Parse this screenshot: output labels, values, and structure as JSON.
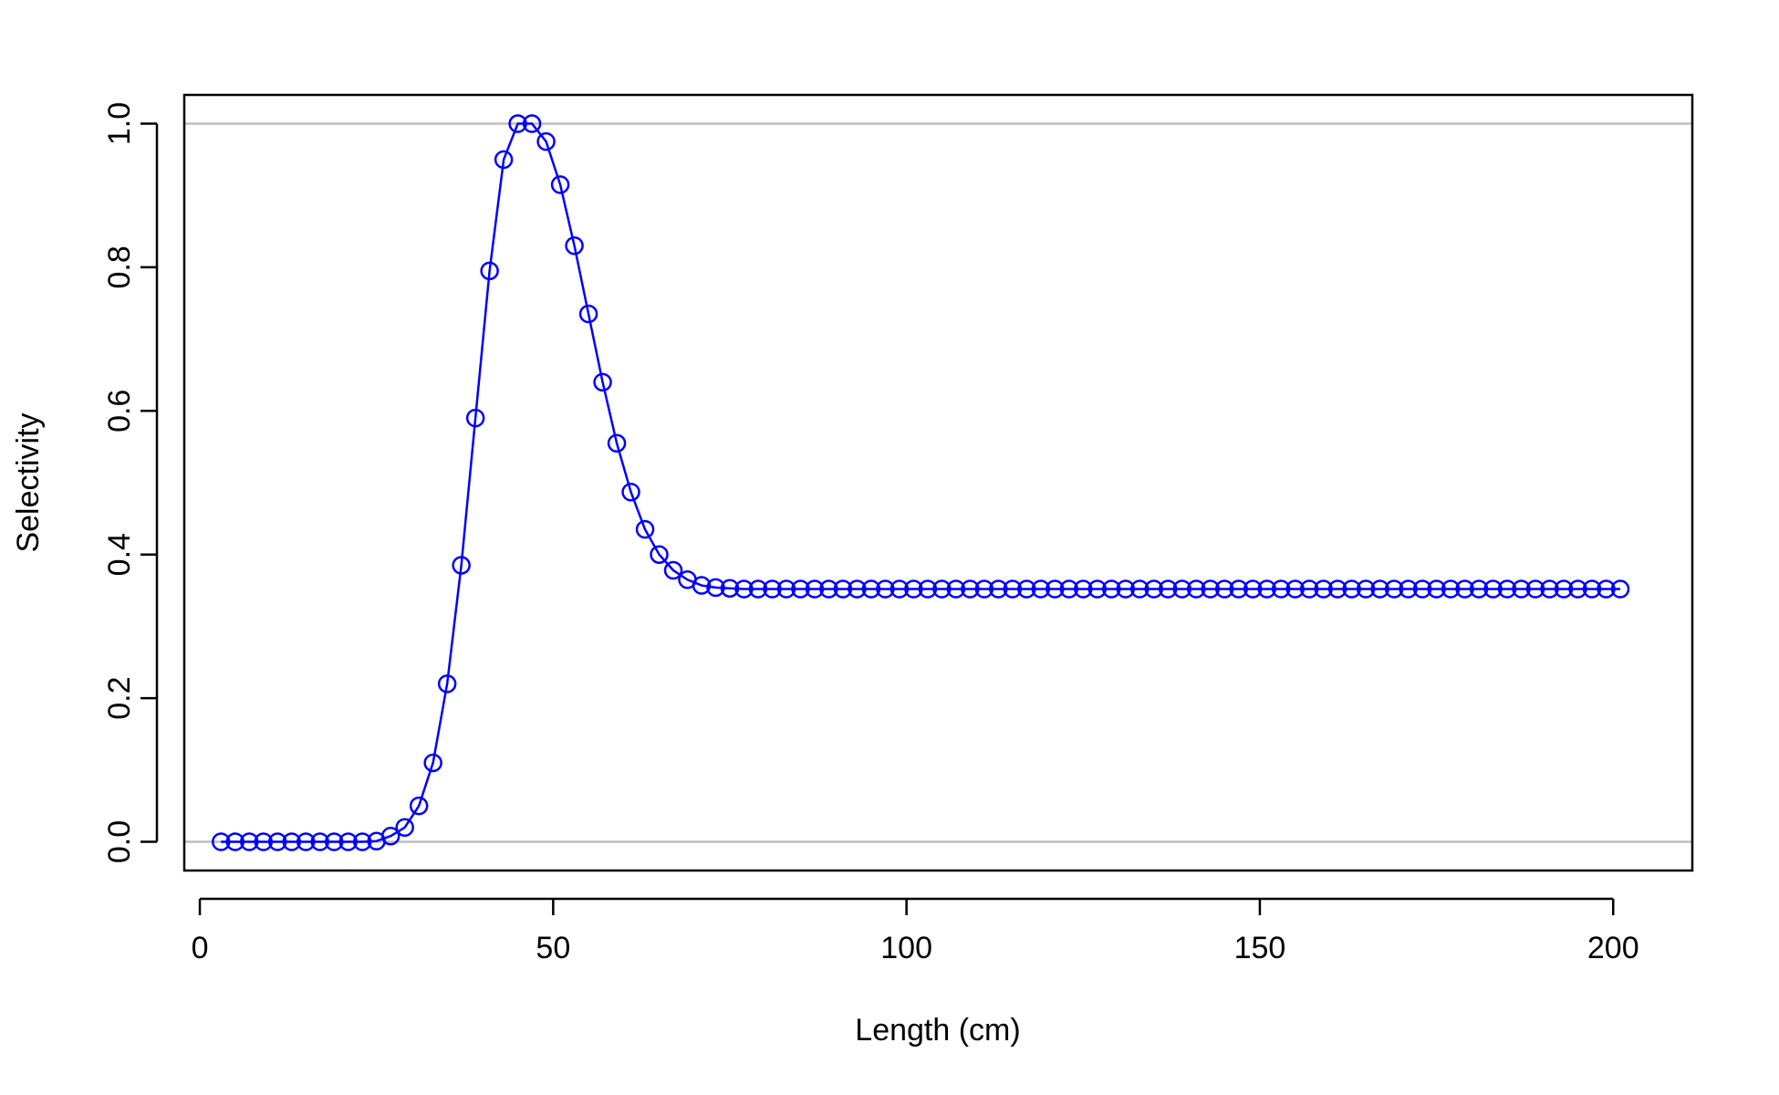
{
  "colors": {
    "series": "#0000ff",
    "reference_line": "#bebebe",
    "axis": "#000000",
    "background": "#ffffff"
  },
  "chart_data": {
    "type": "line",
    "markers": "open-circle",
    "title": "",
    "xlabel": "Length (cm)",
    "ylabel": "Selectivity",
    "xlim": [
      -2.2,
      211.2
    ],
    "ylim": [
      -0.04,
      1.04
    ],
    "x_ticks": [
      0,
      50,
      100,
      150,
      200
    ],
    "x_tick_labels": [
      "0",
      "50",
      "100",
      "150",
      "200"
    ],
    "y_ticks": [
      0.0,
      0.2,
      0.4,
      0.6,
      0.8,
      1.0
    ],
    "y_tick_labels": [
      "0.0",
      "0.2",
      "0.4",
      "0.6",
      "0.8",
      "1.0"
    ],
    "reference_lines_y": [
      0,
      1
    ],
    "grid": false,
    "legend": "none",
    "series": [
      {
        "x": [
          3,
          5,
          7,
          9,
          11,
          13,
          15,
          17,
          19,
          21,
          23,
          25,
          27,
          29,
          31,
          33,
          35,
          37,
          39,
          41,
          43,
          45,
          47,
          49,
          51,
          53,
          55,
          57,
          59,
          61,
          63,
          65,
          67,
          69,
          71,
          73,
          75,
          77,
          79,
          81,
          83,
          85,
          87,
          89,
          91,
          93,
          95,
          97,
          99,
          101,
          103,
          105,
          107,
          109,
          111,
          113,
          115,
          117,
          119,
          121,
          123,
          125,
          127,
          129,
          131,
          133,
          135,
          137,
          139,
          141,
          143,
          145,
          147,
          149,
          151,
          153,
          155,
          157,
          159,
          161,
          163,
          165,
          167,
          169,
          171,
          173,
          175,
          177,
          179,
          181,
          183,
          185,
          187,
          189,
          191,
          193,
          195,
          197,
          199,
          201
        ],
        "y": [
          0,
          0,
          0,
          0,
          0,
          0,
          0,
          0,
          0,
          0,
          0,
          0.001,
          0.008,
          0.02,
          0.05,
          0.11,
          0.22,
          0.385,
          0.59,
          0.795,
          0.95,
          1.0,
          1.0,
          0.975,
          0.915,
          0.83,
          0.735,
          0.64,
          0.555,
          0.487,
          0.435,
          0.4,
          0.378,
          0.365,
          0.357,
          0.354,
          0.353,
          0.352,
          0.352,
          0.352,
          0.352,
          0.352,
          0.352,
          0.352,
          0.352,
          0.352,
          0.352,
          0.352,
          0.352,
          0.352,
          0.352,
          0.352,
          0.352,
          0.352,
          0.352,
          0.352,
          0.352,
          0.352,
          0.352,
          0.352,
          0.352,
          0.352,
          0.352,
          0.352,
          0.352,
          0.352,
          0.352,
          0.352,
          0.352,
          0.352,
          0.352,
          0.352,
          0.352,
          0.352,
          0.352,
          0.352,
          0.352,
          0.352,
          0.352,
          0.352,
          0.352,
          0.352,
          0.352,
          0.352,
          0.352,
          0.352,
          0.352,
          0.352,
          0.352,
          0.352,
          0.352,
          0.352,
          0.352,
          0.352,
          0.352,
          0.352,
          0.352,
          0.352,
          0.352,
          0.352
        ]
      }
    ]
  }
}
